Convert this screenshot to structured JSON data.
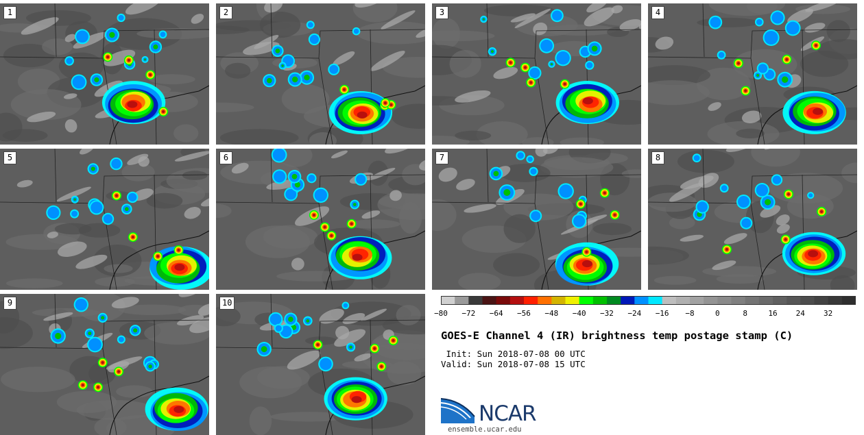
{
  "panels": [
    {
      "label": "1"
    },
    {
      "label": "2"
    },
    {
      "label": "3"
    },
    {
      "label": "4"
    },
    {
      "label": "5"
    },
    {
      "label": "6"
    },
    {
      "label": "7"
    },
    {
      "label": "8"
    },
    {
      "label": "9"
    },
    {
      "label": "10"
    }
  ],
  "colorbar": {
    "ticks": [
      "−80",
      "−72",
      "−64",
      "−56",
      "−48",
      "−40",
      "−32",
      "−24",
      "−16",
      "−8",
      "0",
      "8",
      "16",
      "24",
      "32"
    ],
    "colors": [
      "#d0d0d0",
      "#9a9a9a",
      "#3a3a3a",
      "#4a1414",
      "#7a0a0a",
      "#b40f0f",
      "#ff2000",
      "#ff7000",
      "#d4b400",
      "#f0f000",
      "#00ff00",
      "#00c000",
      "#008a20",
      "#0018b8",
      "#0090ff",
      "#00e8ff",
      "#bebebe",
      "#b0b0b0",
      "#a2a2a2",
      "#949494",
      "#8a8a8a",
      "#808080",
      "#747474",
      "#6a6a6a",
      "#606060",
      "#565656",
      "#4c4c4c",
      "#424242",
      "#383838",
      "#2e2e2e"
    ]
  },
  "title": "GOES-E Channel 4 (IR) brightness temp postage stamp (C)",
  "init": " Init: Sun 2018-07-08 00 UTC",
  "valid": "Valid: Sun 2018-07-08 15 UTC",
  "logo": {
    "text": "NCAR",
    "url": "ensemble.ucar.edu"
  }
}
